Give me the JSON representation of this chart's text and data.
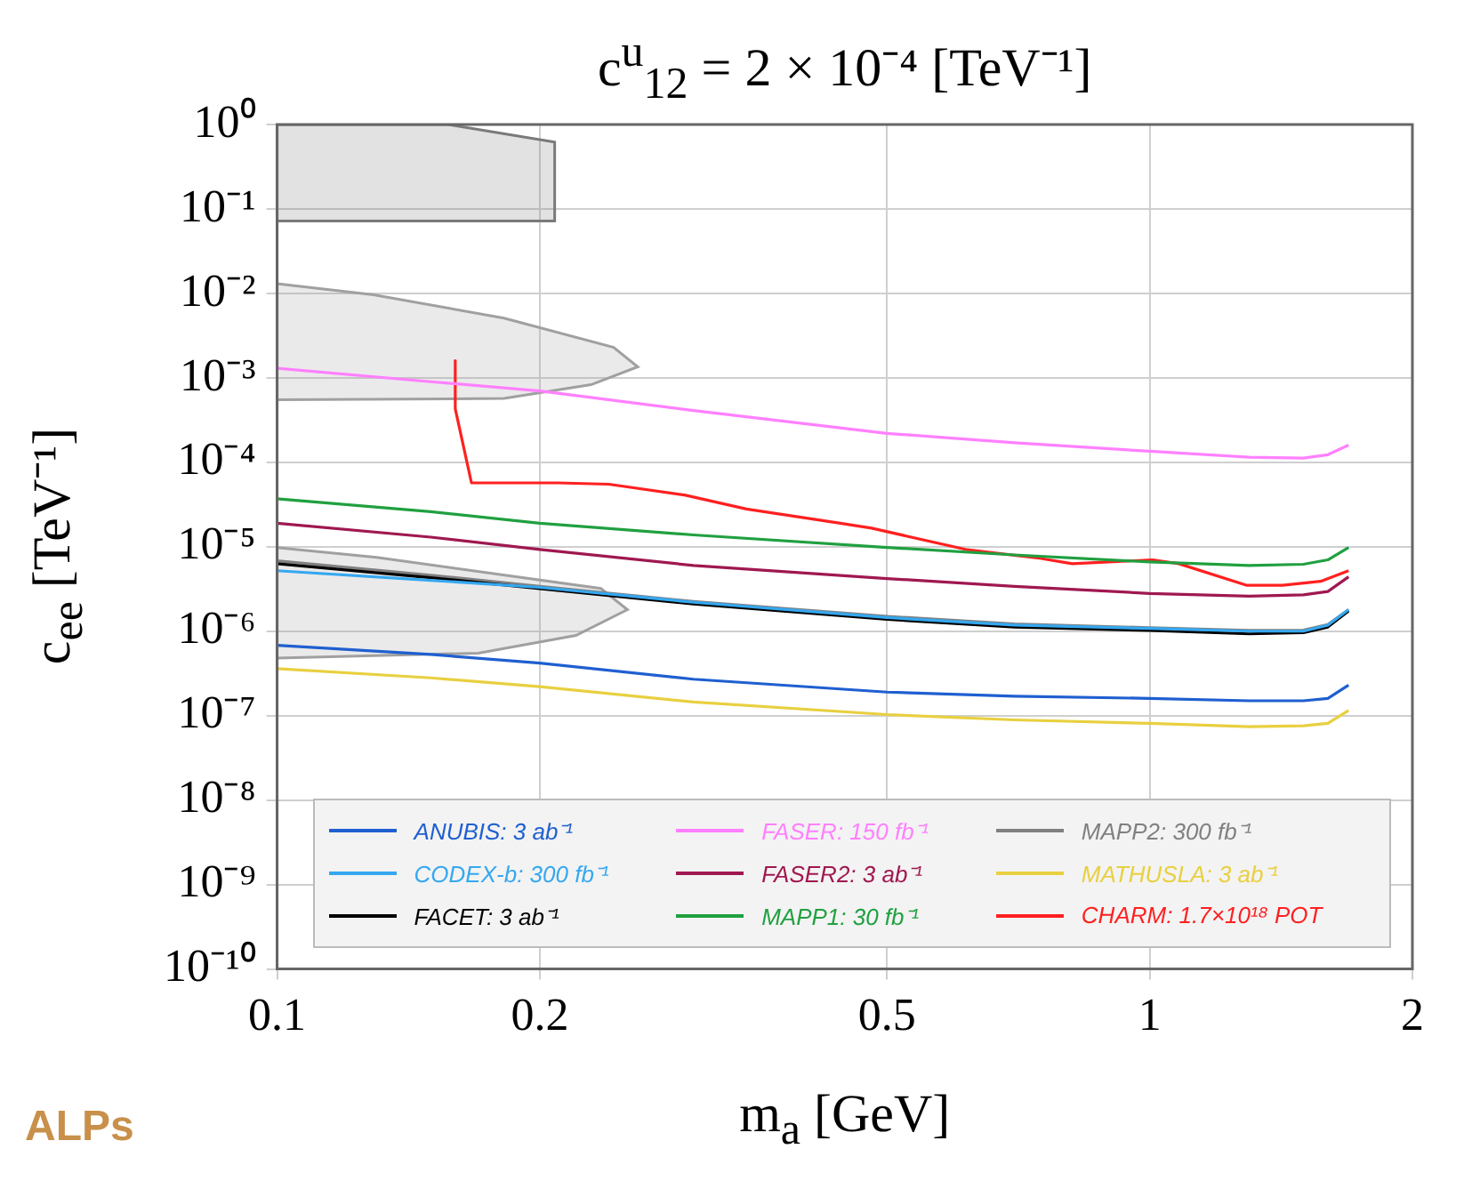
{
  "chart_data": {
    "type": "line",
    "title": "c$^{u}$$_{12}$ = 2 × 10⁻⁴ [TeV⁻¹]",
    "xlabel": "m$_{a}$ [GeV]",
    "ylabel": "c$_{ee}$ [TeV⁻¹]",
    "annotations": [
      "ALPs"
    ],
    "log": "xy",
    "grid": true,
    "legend": "bottom",
    "xlim": [
      0.1,
      2
    ],
    "ylim": [
      1e-10,
      1
    ],
    "xticks": [
      0.1,
      0.2,
      0.5,
      1,
      2
    ],
    "yticks": [
      {
        "value": 1e-10,
        "label": "10⁻¹⁰"
      },
      {
        "value": 1e-09,
        "label": "10⁻⁹"
      },
      {
        "value": 1e-08,
        "label": "10⁻⁸"
      },
      {
        "value": 1e-07,
        "label": "10⁻⁷"
      },
      {
        "value": 1e-06,
        "label": "10⁻⁶"
      },
      {
        "value": 1e-05,
        "label": "10⁻⁵"
      },
      {
        "value": 0.0001,
        "label": "10⁻⁴"
      },
      {
        "value": 0.001,
        "label": "10⁻³"
      },
      {
        "value": 0.01,
        "label": "10⁻²"
      },
      {
        "value": 0.1,
        "label": "10⁻¹"
      },
      {
        "value": 1,
        "label": "10⁰"
      }
    ],
    "x": [
      0.1,
      0.15,
      0.2,
      0.3,
      0.5,
      0.7,
      1,
      1.3,
      1.5,
      1.6,
      1.69
    ],
    "series": [
      {
        "name": "ANUBIS: 3 ab⁻¹",
        "color": "#1f5fd0",
        "values": [
          6.8e-07,
          5.3e-07,
          4.2e-07,
          2.7e-07,
          1.9e-07,
          1.7e-07,
          1.6e-07,
          1.5e-07,
          1.5e-07,
          1.6e-07,
          2.3e-07
        ]
      },
      {
        "name": "CODEX-b: 300 fb⁻¹",
        "color": "#35a8f0",
        "values": [
          5.2e-06,
          4e-06,
          3.3e-06,
          2.2e-06,
          1.45e-06,
          1.18e-06,
          1.08e-06,
          1e-06,
          1e-06,
          1.18e-06,
          1.8e-06
        ]
      },
      {
        "name": "FACET: 3 ab⁻¹",
        "color": "#000000",
        "values": [
          6.3e-06,
          4.3e-06,
          3.2e-06,
          2.1e-06,
          1.38e-06,
          1.12e-06,
          1.02e-06,
          9.3e-07,
          9.6e-07,
          1.12e-06,
          1.74e-06
        ]
      },
      {
        "name": "FASER: 150 fb⁻¹",
        "color": "#ff80ff",
        "values": [
          0.0013,
          0.0009,
          0.0007,
          0.00041,
          0.00022,
          0.00017,
          0.000135,
          0.000115,
          0.000112,
          0.000123,
          0.00016
        ]
      },
      {
        "name": "FASER2: 3 ab⁻¹",
        "color": "#a01850",
        "values": [
          1.9e-05,
          1.3e-05,
          9.3e-06,
          6e-06,
          4.2e-06,
          3.4e-06,
          2.8e-06,
          2.6e-06,
          2.7e-06,
          2.95e-06,
          4.4e-06
        ]
      },
      {
        "name": "MAPP1: 30 fb⁻¹",
        "color": "#20a040",
        "values": [
          3.7e-05,
          2.6e-05,
          1.9e-05,
          1.38e-05,
          9.8e-06,
          8e-06,
          6.6e-06,
          6e-06,
          6.2e-06,
          7e-06,
          9.8e-06
        ]
      },
      {
        "name": "MAPP2: 300 fb⁻¹",
        "color": "#808080",
        "values": [
          6.8e-06,
          4.6e-06,
          3.4e-06,
          2.25e-06,
          1.5e-06,
          1.22e-06,
          1.1e-06,
          1.02e-06,
          1.03e-06,
          1.2e-06,
          1.8e-06
        ]
      },
      {
        "name": "MATHUSLA: 3 ab⁻¹",
        "color": "#e8d040",
        "values": [
          3.6e-07,
          2.8e-07,
          2.2e-07,
          1.45e-07,
          1.03e-07,
          8.9e-08,
          8.1e-08,
          7.4e-08,
          7.6e-08,
          8.1e-08,
          1.15e-07
        ]
      },
      {
        "name": "CHARM: 1.7×10¹⁸ POT",
        "color": "#ff2020",
        "x": [
          0.16,
          0.16,
          0.167,
          0.21,
          0.24,
          0.293,
          0.345,
          0.442,
          0.48,
          0.615,
          0.748,
          0.815,
          1.007,
          1.08,
          1.29,
          1.42,
          1.57,
          1.69
        ],
        "values": [
          0.0016,
          0.00043,
          5.7e-05,
          5.7e-05,
          5.5e-05,
          4.1e-05,
          2.8e-05,
          1.9e-05,
          1.66e-05,
          9.3e-06,
          7.3e-06,
          6.3e-06,
          7e-06,
          6.3e-06,
          3.5e-06,
          3.5e-06,
          3.9e-06,
          5.2e-06
        ]
      },
      {
        "type": "area",
        "color": "#7a7a7a",
        "x": [
          0.1,
          0.157,
          0.208,
          0.208,
          0.1
        ],
        "values": [
          1,
          1,
          0.62,
          0.072,
          0.072
        ]
      },
      {
        "type": "area",
        "color": "#a0a0a0",
        "x": [
          0.1,
          0.129,
          0.182,
          0.243,
          0.259,
          0.229,
          0.182,
          0.1
        ],
        "values": [
          0.013,
          0.0096,
          0.0051,
          0.0023,
          0.00135,
          0.00083,
          0.00057,
          0.00055
        ]
      },
      {
        "type": "area",
        "color": "#a0a0a0",
        "x": [
          0.1,
          0.13,
          0.235,
          0.252,
          0.22,
          0.17,
          0.1
        ],
        "values": [
          9.8e-06,
          7.5e-06,
          3.2e-06,
          1.8e-06,
          8.9e-07,
          5.5e-07,
          4.8e-07
        ]
      }
    ]
  }
}
